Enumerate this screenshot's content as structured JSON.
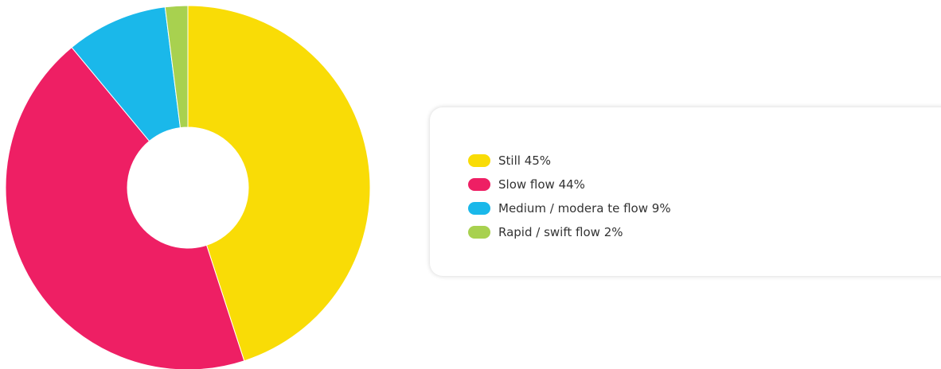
{
  "chart_data": {
    "type": "pie",
    "categories": [
      "Still",
      "Slow flow",
      "Medium / modera te flow",
      "Rapid / swift flow"
    ],
    "values": [
      45,
      44,
      9,
      2
    ],
    "value_labels": [
      "45%",
      "44%",
      "9%",
      "2%"
    ],
    "colors": [
      "#f9dc06",
      "#ee1f64",
      "#1ab8ea",
      "#a8d14f"
    ],
    "donut": true
  }
}
